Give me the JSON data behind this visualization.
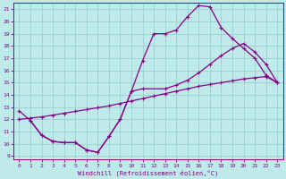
{
  "xlabel": "Windchill (Refroidissement éolien,°C)",
  "bg_color": "#beeaea",
  "grid_color": "#9ecece",
  "line_color": "#880088",
  "xlim_min": -0.5,
  "xlim_max": 23.5,
  "ylim_min": 8.7,
  "ylim_max": 21.5,
  "xticks": [
    0,
    1,
    2,
    3,
    4,
    5,
    6,
    7,
    8,
    9,
    10,
    11,
    12,
    13,
    14,
    15,
    16,
    17,
    18,
    19,
    20,
    21,
    22,
    23
  ],
  "yticks": [
    9,
    10,
    11,
    12,
    13,
    14,
    15,
    16,
    17,
    18,
    19,
    20,
    21
  ],
  "line1_x": [
    0,
    1,
    2,
    3,
    4,
    5,
    6,
    7,
    8,
    9,
    10,
    11,
    12,
    13,
    14,
    15,
    16,
    17,
    18,
    19,
    20,
    21,
    22,
    23
  ],
  "line1_y": [
    12.7,
    11.9,
    10.7,
    10.2,
    10.1,
    10.1,
    9.5,
    9.3,
    10.6,
    12.0,
    14.3,
    16.8,
    19.0,
    19.0,
    19.3,
    20.4,
    21.3,
    21.2,
    19.5,
    18.6,
    17.8,
    17.0,
    15.6,
    15.0
  ],
  "line2_x": [
    1,
    2,
    3,
    4,
    5,
    6,
    7,
    8,
    9,
    10,
    11,
    13,
    14,
    15,
    16,
    17,
    18,
    19,
    20,
    21,
    22,
    23
  ],
  "line2_y": [
    11.9,
    10.7,
    10.2,
    10.1,
    10.1,
    9.5,
    9.3,
    10.6,
    12.0,
    14.3,
    14.5,
    14.5,
    14.8,
    15.2,
    15.8,
    16.5,
    17.2,
    17.8,
    18.2,
    17.5,
    16.5,
    15.0
  ],
  "line3_x": [
    0,
    1,
    2,
    3,
    4,
    5,
    6,
    7,
    8,
    9,
    10,
    11,
    12,
    13,
    14,
    15,
    16,
    17,
    18,
    19,
    20,
    21,
    22,
    23
  ],
  "line3_y": [
    12.0,
    12.1,
    12.2,
    12.35,
    12.5,
    12.65,
    12.8,
    12.95,
    13.1,
    13.3,
    13.5,
    13.7,
    13.9,
    14.1,
    14.3,
    14.5,
    14.7,
    14.85,
    15.0,
    15.15,
    15.3,
    15.4,
    15.5,
    15.0
  ]
}
